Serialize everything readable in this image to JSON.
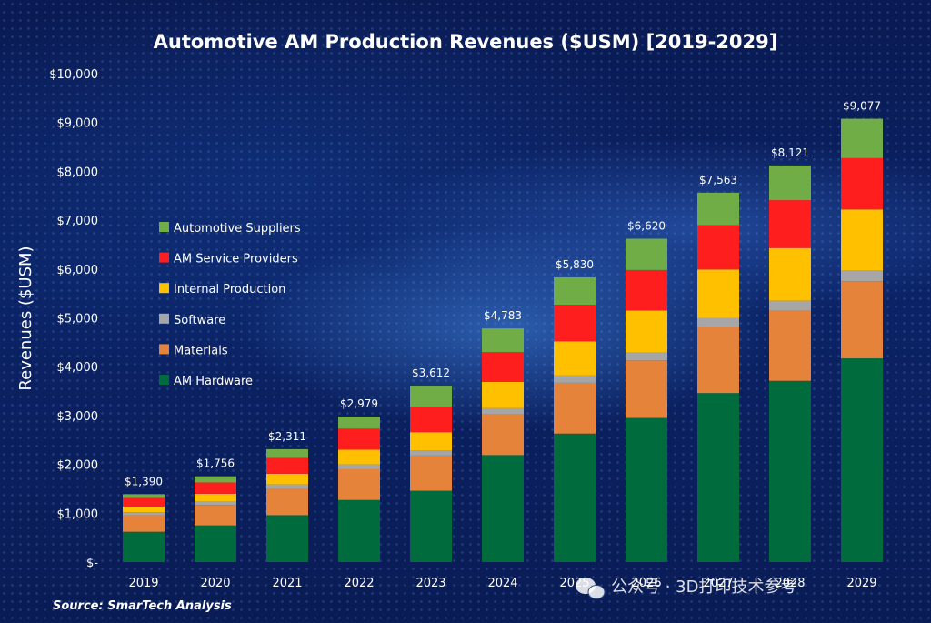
{
  "chart_data": {
    "type": "bar",
    "stacked": true,
    "title": "Automotive AM Production Revenues ($USM) [2019-2029]",
    "ylabel": "Revenues ($USM)",
    "xlabel": "",
    "ylim": [
      0,
      10000
    ],
    "yticks": [
      0,
      1000,
      2000,
      3000,
      4000,
      5000,
      6000,
      7000,
      8000,
      9000,
      10000
    ],
    "ytick_labels": [
      "$-",
      "$1,000",
      "$2,000",
      "$3,000",
      "$4,000",
      "$5,000",
      "$6,000",
      "$7,000",
      "$8,000",
      "$9,000",
      "$10,000"
    ],
    "categories": [
      "2019",
      "2020",
      "2021",
      "2022",
      "2023",
      "2024",
      "2025",
      "2026",
      "2027",
      "2028",
      "2029"
    ],
    "totals": [
      1390,
      1756,
      2311,
      2979,
      3612,
      4783,
      5830,
      6620,
      7563,
      8121,
      9077
    ],
    "total_labels": [
      "$1,390",
      "$1,756",
      "$2,311",
      "$2,979",
      "$3,612",
      "$4,783",
      "$5,830",
      "$6,620",
      "$7,563",
      "$8,121",
      "$9,077"
    ],
    "legend_position": "left",
    "grid": false,
    "series": [
      {
        "name": "AM Hardware",
        "color": "#006b3c",
        "values": [
          620,
          750,
          960,
          1270,
          1460,
          2190,
          2630,
          2950,
          3460,
          3710,
          4170
        ]
      },
      {
        "name": "Materials",
        "color": "#e5833b",
        "values": [
          340,
          420,
          540,
          630,
          720,
          830,
          1040,
          1180,
          1360,
          1440,
          1580
        ]
      },
      {
        "name": "Software",
        "color": "#a6a6a6",
        "values": [
          60,
          70,
          90,
          100,
          110,
          130,
          150,
          160,
          180,
          200,
          220
        ]
      },
      {
        "name": "Internal Production",
        "color": "#ffc000",
        "values": [
          120,
          160,
          220,
          300,
          370,
          540,
          700,
          860,
          990,
          1080,
          1250
        ]
      },
      {
        "name": "AM Service Providers",
        "color": "#ff1e1e",
        "values": [
          170,
          230,
          320,
          430,
          520,
          610,
          750,
          830,
          910,
          980,
          1050
        ]
      },
      {
        "name": "Automotive Suppliers",
        "color": "#70ad47",
        "values": [
          80,
          126,
          181,
          249,
          432,
          483,
          560,
          640,
          663,
          711,
          807
        ]
      }
    ],
    "source": "Source: SmarTech Analysis"
  },
  "watermark": "公众号 · 3D打印技术参考"
}
